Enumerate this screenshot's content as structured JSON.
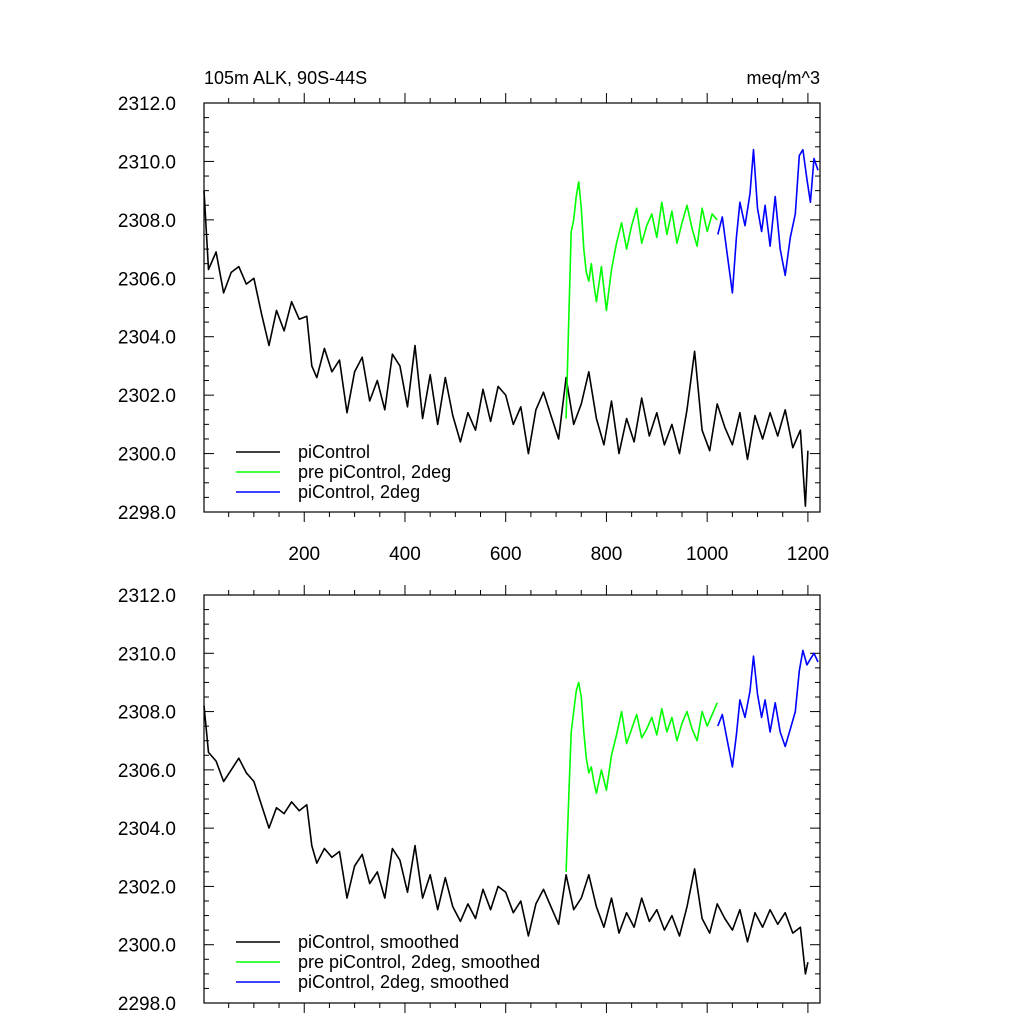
{
  "figure": {
    "title_left": "105m ALK, 90S-44S",
    "title_right": "meq/m^3"
  },
  "chart_data": [
    {
      "type": "line",
      "title": "105m ALK, 90S-44S",
      "units": "meq/m^3",
      "xlim": [
        1,
        1224
      ],
      "ylim": [
        2298.0,
        2312.0
      ],
      "x_ticks": [
        200,
        400,
        600,
        800,
        1000,
        1200
      ],
      "x_tick_labels": [
        "200",
        "400",
        "600",
        "800",
        "1000",
        "1200"
      ],
      "y_ticks": [
        2298,
        2300,
        2302,
        2304,
        2306,
        2308,
        2310,
        2312
      ],
      "y_tick_labels": [
        "2298.0",
        "2300.0",
        "2302.0",
        "2304.0",
        "2306.0",
        "2308.0",
        "2310.0",
        "2312.0"
      ],
      "grid": false,
      "legend_position": "bottom-left",
      "series": [
        {
          "name": "piControl",
          "color": "#000000",
          "x": [
            1,
            10,
            25,
            40,
            55,
            70,
            85,
            100,
            115,
            130,
            145,
            160,
            175,
            190,
            205,
            215,
            225,
            240,
            255,
            270,
            285,
            300,
            315,
            330,
            345,
            360,
            375,
            390,
            405,
            420,
            435,
            450,
            465,
            480,
            495,
            510,
            525,
            540,
            555,
            570,
            585,
            600,
            615,
            630,
            645,
            660,
            675,
            690,
            705,
            720,
            735,
            750,
            765,
            780,
            795,
            810,
            825,
            840,
            855,
            870,
            885,
            900,
            915,
            930,
            945,
            960,
            975,
            990,
            1005,
            1020,
            1035,
            1050,
            1065,
            1080,
            1095,
            1110,
            1125,
            1140,
            1155,
            1170,
            1185,
            1195,
            1200
          ],
          "y": [
            2309.0,
            2306.3,
            2306.9,
            2305.5,
            2306.2,
            2306.4,
            2305.8,
            2306.0,
            2304.8,
            2303.7,
            2304.9,
            2304.2,
            2305.2,
            2304.6,
            2304.7,
            2303.0,
            2302.6,
            2303.6,
            2302.8,
            2303.2,
            2301.4,
            2302.8,
            2303.3,
            2301.8,
            2302.5,
            2301.5,
            2303.4,
            2303.0,
            2301.6,
            2303.7,
            2301.2,
            2302.7,
            2301.0,
            2302.6,
            2301.3,
            2300.4,
            2301.4,
            2300.8,
            2302.2,
            2301.1,
            2302.3,
            2302.0,
            2301.0,
            2301.6,
            2300.0,
            2301.5,
            2302.1,
            2301.3,
            2300.5,
            2302.6,
            2301.0,
            2301.7,
            2302.8,
            2301.2,
            2300.3,
            2301.8,
            2300.0,
            2301.2,
            2300.4,
            2301.9,
            2300.6,
            2301.4,
            2300.3,
            2301.0,
            2300.0,
            2301.5,
            2303.5,
            2300.8,
            2300.1,
            2301.7,
            2300.9,
            2300.3,
            2301.4,
            2299.8,
            2301.3,
            2300.5,
            2301.4,
            2300.6,
            2301.5,
            2300.2,
            2300.8,
            2298.2,
            2300.1
          ]
        },
        {
          "name": "pre piControl, 2deg",
          "color": "#00ff00",
          "x": [
            720,
            725,
            730,
            735,
            740,
            745,
            750,
            755,
            760,
            765,
            770,
            775,
            780,
            790,
            800,
            810,
            820,
            830,
            840,
            850,
            860,
            870,
            880,
            890,
            900,
            910,
            920,
            930,
            940,
            950,
            960,
            970,
            980,
            990,
            1000,
            1010,
            1020
          ],
          "y": [
            2301.2,
            2304.5,
            2307.6,
            2308.0,
            2308.8,
            2309.3,
            2308.4,
            2307.0,
            2306.2,
            2305.9,
            2306.5,
            2305.8,
            2305.2,
            2306.4,
            2304.9,
            2306.3,
            2307.2,
            2307.9,
            2307.0,
            2307.8,
            2308.4,
            2307.2,
            2307.8,
            2308.2,
            2307.4,
            2308.6,
            2307.5,
            2308.3,
            2307.2,
            2307.9,
            2308.5,
            2307.7,
            2307.1,
            2308.4,
            2307.6,
            2308.2,
            2308.0
          ]
        },
        {
          "name": "piControl, 2deg",
          "color": "#0000ff",
          "x": [
            1021,
            1030,
            1040,
            1050,
            1058,
            1065,
            1075,
            1085,
            1092,
            1100,
            1108,
            1115,
            1125,
            1135,
            1145,
            1155,
            1165,
            1175,
            1183,
            1190,
            1198,
            1205,
            1212,
            1220
          ],
          "y": [
            2307.5,
            2308.1,
            2306.8,
            2305.5,
            2307.4,
            2308.6,
            2307.8,
            2308.9,
            2310.4,
            2308.4,
            2307.6,
            2308.5,
            2307.1,
            2308.8,
            2307.0,
            2306.1,
            2307.4,
            2308.2,
            2310.2,
            2310.4,
            2309.4,
            2308.6,
            2310.1,
            2309.7
          ]
        }
      ]
    },
    {
      "type": "line",
      "xlim": [
        1,
        1224
      ],
      "ylim": [
        2298.0,
        2312.0
      ],
      "x_ticks": [
        200,
        400,
        600,
        800,
        1000,
        1200
      ],
      "y_ticks": [
        2298,
        2300,
        2302,
        2304,
        2306,
        2308,
        2310,
        2312
      ],
      "y_tick_labels": [
        "2298.0",
        "2300.0",
        "2302.0",
        "2304.0",
        "2306.0",
        "2308.0",
        "2310.0",
        "2312.0"
      ],
      "grid": false,
      "legend_position": "bottom-left",
      "series": [
        {
          "name": "piControl, smoothed",
          "color": "#000000",
          "x": [
            1,
            10,
            25,
            40,
            55,
            70,
            85,
            100,
            115,
            130,
            145,
            160,
            175,
            190,
            205,
            215,
            225,
            240,
            255,
            270,
            285,
            300,
            315,
            330,
            345,
            360,
            375,
            390,
            405,
            420,
            435,
            450,
            465,
            480,
            495,
            510,
            525,
            540,
            555,
            570,
            585,
            600,
            615,
            630,
            645,
            660,
            675,
            690,
            705,
            720,
            735,
            750,
            765,
            780,
            795,
            810,
            825,
            840,
            855,
            870,
            885,
            900,
            915,
            930,
            945,
            960,
            975,
            990,
            1005,
            1020,
            1035,
            1050,
            1065,
            1080,
            1095,
            1110,
            1125,
            1140,
            1155,
            1170,
            1185,
            1195,
            1200
          ],
          "y": [
            2308.2,
            2306.6,
            2306.3,
            2305.6,
            2306.0,
            2306.4,
            2305.9,
            2305.6,
            2304.8,
            2304.0,
            2304.7,
            2304.5,
            2304.9,
            2304.6,
            2304.8,
            2303.4,
            2302.8,
            2303.3,
            2303.0,
            2303.2,
            2301.6,
            2302.7,
            2303.1,
            2302.1,
            2302.5,
            2301.6,
            2303.3,
            2302.9,
            2301.8,
            2303.4,
            2301.6,
            2302.4,
            2301.2,
            2302.3,
            2301.3,
            2300.8,
            2301.4,
            2300.9,
            2301.9,
            2301.2,
            2302.0,
            2301.8,
            2301.1,
            2301.5,
            2300.3,
            2301.4,
            2301.9,
            2301.3,
            2300.7,
            2302.4,
            2301.2,
            2301.6,
            2302.4,
            2301.3,
            2300.6,
            2301.6,
            2300.4,
            2301.1,
            2300.6,
            2301.6,
            2300.8,
            2301.2,
            2300.5,
            2301.0,
            2300.3,
            2301.3,
            2302.6,
            2300.9,
            2300.4,
            2301.4,
            2300.9,
            2300.5,
            2301.2,
            2300.1,
            2301.1,
            2300.6,
            2301.2,
            2300.7,
            2301.1,
            2300.4,
            2300.6,
            2299.0,
            2299.4
          ]
        },
        {
          "name": "pre piControl, 2deg, smoothed",
          "color": "#00ff00",
          "x": [
            720,
            725,
            730,
            735,
            740,
            745,
            750,
            755,
            760,
            765,
            770,
            775,
            780,
            790,
            800,
            810,
            820,
            830,
            840,
            850,
            860,
            870,
            880,
            890,
            900,
            910,
            920,
            930,
            940,
            950,
            960,
            970,
            980,
            990,
            1000,
            1010,
            1020
          ],
          "y": [
            2302.5,
            2305.0,
            2307.3,
            2308.0,
            2308.7,
            2309.0,
            2308.5,
            2307.3,
            2306.4,
            2305.9,
            2306.1,
            2305.6,
            2305.2,
            2306.0,
            2305.3,
            2306.5,
            2307.2,
            2308.0,
            2306.9,
            2307.4,
            2307.9,
            2307.1,
            2307.4,
            2307.8,
            2307.2,
            2308.1,
            2307.3,
            2307.8,
            2307.0,
            2307.6,
            2308.0,
            2307.4,
            2307.0,
            2308.0,
            2307.5,
            2307.9,
            2308.3
          ]
        },
        {
          "name": "piControl, 2deg, smoothed",
          "color": "#0000ff",
          "x": [
            1021,
            1030,
            1040,
            1050,
            1058,
            1065,
            1075,
            1085,
            1092,
            1100,
            1108,
            1115,
            1125,
            1135,
            1145,
            1155,
            1165,
            1175,
            1183,
            1190,
            1198,
            1205,
            1212,
            1220
          ],
          "y": [
            2307.5,
            2307.9,
            2307.0,
            2306.1,
            2307.2,
            2308.4,
            2307.8,
            2308.7,
            2309.9,
            2308.6,
            2307.8,
            2308.4,
            2307.3,
            2308.3,
            2307.3,
            2306.8,
            2307.4,
            2308.0,
            2309.4,
            2310.1,
            2309.6,
            2309.8,
            2310.0,
            2309.7
          ]
        }
      ]
    }
  ]
}
